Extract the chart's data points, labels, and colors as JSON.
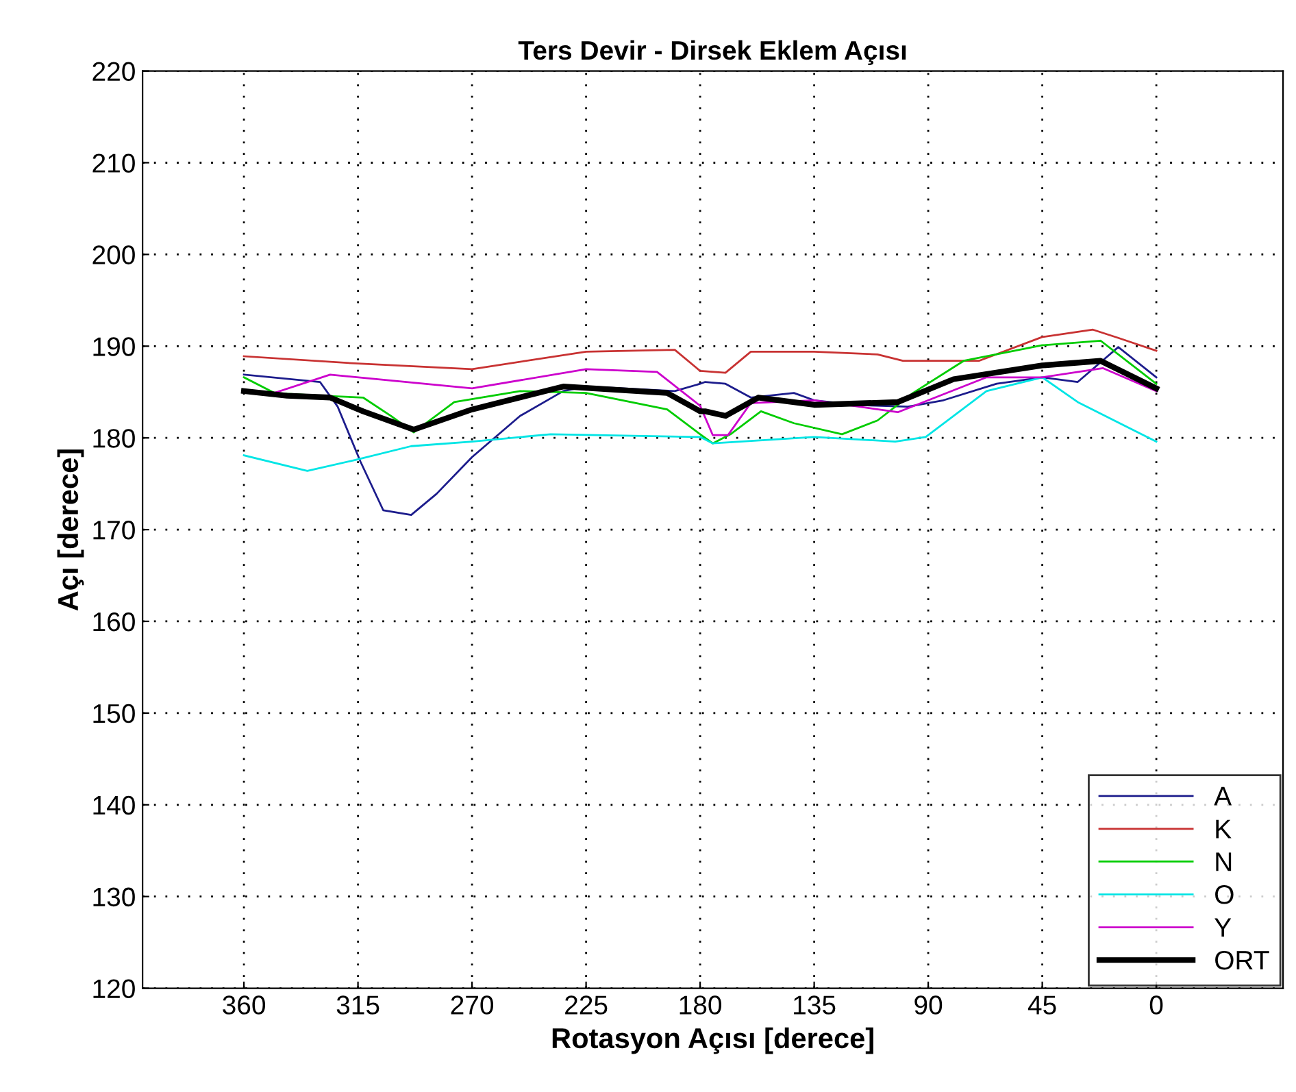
{
  "chart_data": {
    "type": "line",
    "title": "Ters Devir - Dirsek Eklem Açısı",
    "xlabel": "Rotasyon Açısı [derece]",
    "ylabel": "Açı [derece]",
    "xlim": [
      400,
      -50
    ],
    "xticks": [
      360,
      315,
      270,
      225,
      180,
      135,
      90,
      45,
      0
    ],
    "ylim": [
      120,
      220
    ],
    "yticks": [
      120,
      130,
      140,
      150,
      160,
      170,
      180,
      190,
      200,
      210,
      220
    ],
    "grid": true,
    "legend": "bottom right",
    "line_style": "solid",
    "marker": "none",
    "series": [
      {
        "name": "A",
        "color": "#1c1c8c",
        "x": [
          360,
          330,
          323,
          314,
          305,
          294,
          284,
          270,
          251,
          234,
          225,
          190,
          180,
          178,
          170,
          160,
          143,
          135,
          119,
          98,
          84,
          63,
          45,
          31,
          15,
          0
        ],
        "values": [
          186.9,
          186.1,
          183.4,
          177.4,
          172.1,
          171.6,
          173.9,
          177.9,
          182.4,
          185.1,
          185.6,
          185.1,
          185.9,
          186.1,
          185.9,
          184.4,
          184.9,
          184.1,
          183.6,
          183.4,
          184.1,
          185.9,
          186.6,
          186.1,
          189.9,
          186.6
        ]
      },
      {
        "name": "K",
        "color": "#c83232",
        "x": [
          360,
          315,
          270,
          225,
          190,
          180,
          170,
          160,
          135,
          110,
          100,
          70,
          45,
          25,
          15,
          0
        ],
        "values": [
          188.9,
          188.1,
          187.5,
          189.4,
          189.6,
          187.3,
          187.1,
          189.4,
          189.4,
          189.1,
          188.4,
          188.4,
          191.0,
          191.8,
          190.9,
          189.5
        ]
      },
      {
        "name": "N",
        "color": "#00cc00",
        "x": [
          360,
          348,
          330,
          313,
          302,
          293,
          277,
          251,
          225,
          193,
          180,
          175,
          168,
          156,
          143,
          124,
          110,
          96,
          76,
          45,
          22,
          0
        ],
        "values": [
          186.6,
          184.9,
          184.6,
          184.4,
          182.4,
          180.6,
          183.9,
          185.1,
          184.9,
          183.1,
          180.4,
          179.4,
          180.4,
          182.9,
          181.6,
          180.4,
          181.9,
          184.9,
          188.4,
          190.1,
          190.6,
          185.9
        ]
      },
      {
        "name": "O",
        "color": "#00e5e5",
        "x": [
          360,
          335,
          316,
          294,
          270,
          239,
          180,
          175,
          135,
          103,
          91,
          67,
          45,
          31,
          13,
          0
        ],
        "values": [
          178.1,
          176.4,
          177.6,
          179.1,
          179.6,
          180.4,
          180.1,
          179.4,
          180.1,
          179.6,
          180.1,
          185.1,
          186.6,
          183.9,
          181.4,
          179.6
        ]
      },
      {
        "name": "Y",
        "color": "#cc00cc",
        "x": [
          348,
          326,
          270,
          225,
          197,
          180,
          175,
          169,
          160,
          135,
          102,
          67,
          45,
          21,
          0
        ],
        "values": [
          184.9,
          186.9,
          185.4,
          187.5,
          187.2,
          183.5,
          180.3,
          180.3,
          183.8,
          184.1,
          182.8,
          186.6,
          186.6,
          187.6,
          185.1
        ]
      },
      {
        "name": "ORT",
        "color": "#000000",
        "x": [
          360,
          343,
          326,
          313,
          293,
          270,
          234,
          193,
          180,
          178,
          170,
          157,
          135,
          102,
          80,
          45,
          22,
          0
        ],
        "values": [
          185.1,
          184.6,
          184.4,
          182.9,
          180.9,
          183.1,
          185.6,
          184.9,
          182.9,
          182.9,
          182.4,
          184.4,
          183.6,
          183.9,
          186.4,
          187.9,
          188.4,
          185.4
        ]
      }
    ]
  }
}
